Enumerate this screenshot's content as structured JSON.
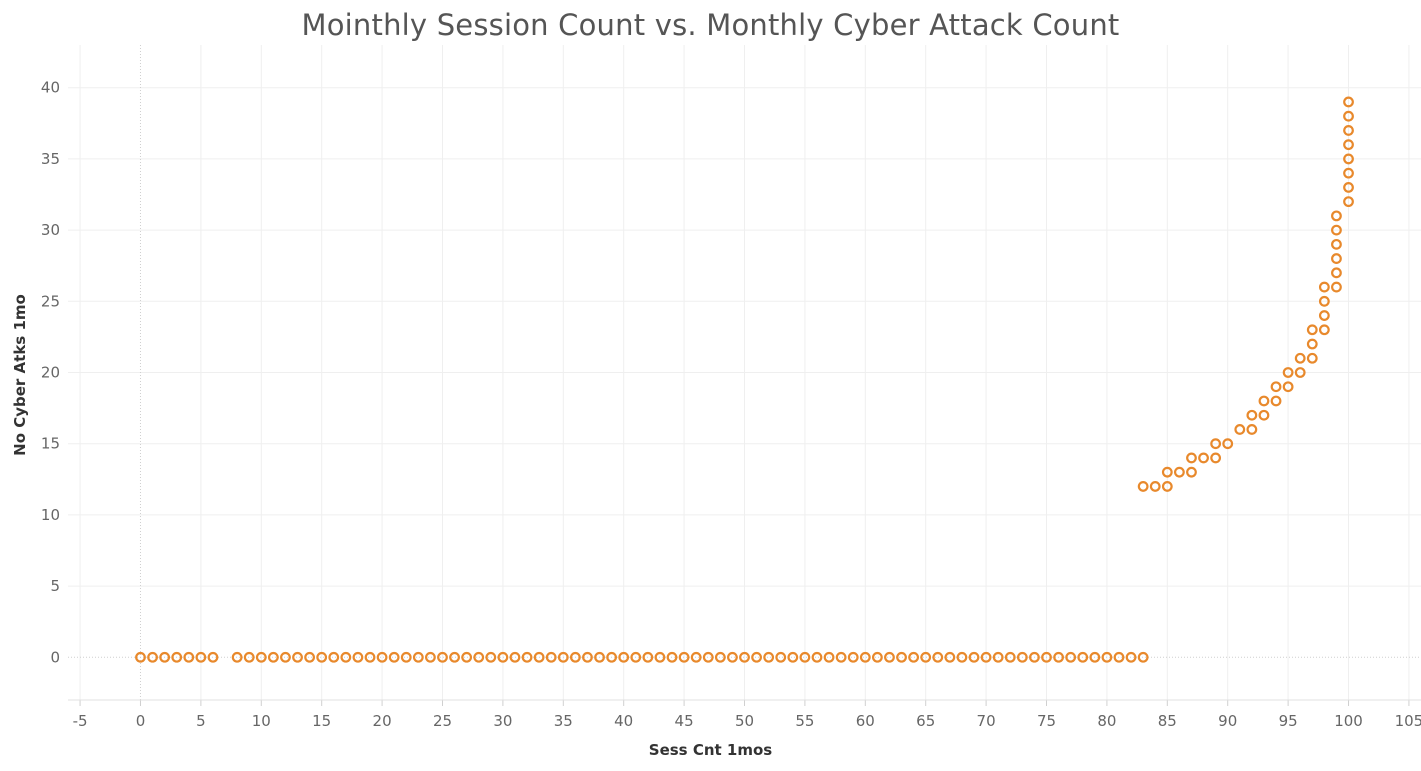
{
  "chart_data": {
    "type": "scatter",
    "title": "Mointhly Session Count vs. Monthly Cyber Attack Count",
    "xlabel": "Sess Cnt 1mos",
    "ylabel": "No Cyber Atks 1mo",
    "xlim": [
      -6,
      106
    ],
    "ylim": [
      -3,
      43
    ],
    "xticks": [
      "-5",
      "0",
      "5",
      "10",
      "15",
      "20",
      "25",
      "30",
      "35",
      "40",
      "45",
      "50",
      "55",
      "60",
      "65",
      "70",
      "75",
      "80",
      "85",
      "90",
      "95",
      "100",
      "105"
    ],
    "yticks": [
      "0",
      "5",
      "10",
      "15",
      "20",
      "25",
      "30",
      "35",
      "40"
    ],
    "grid": true,
    "marker": "open-circle",
    "color": "#E8892C",
    "points": [
      [
        0,
        0
      ],
      [
        1,
        0
      ],
      [
        2,
        0
      ],
      [
        3,
        0
      ],
      [
        4,
        0
      ],
      [
        5,
        0
      ],
      [
        6,
        0
      ],
      [
        8,
        0
      ],
      [
        9,
        0
      ],
      [
        10,
        0
      ],
      [
        11,
        0
      ],
      [
        12,
        0
      ],
      [
        13,
        0
      ],
      [
        14,
        0
      ],
      [
        15,
        0
      ],
      [
        16,
        0
      ],
      [
        17,
        0
      ],
      [
        18,
        0
      ],
      [
        19,
        0
      ],
      [
        20,
        0
      ],
      [
        21,
        0
      ],
      [
        22,
        0
      ],
      [
        23,
        0
      ],
      [
        24,
        0
      ],
      [
        25,
        0
      ],
      [
        26,
        0
      ],
      [
        27,
        0
      ],
      [
        28,
        0
      ],
      [
        29,
        0
      ],
      [
        30,
        0
      ],
      [
        31,
        0
      ],
      [
        32,
        0
      ],
      [
        33,
        0
      ],
      [
        34,
        0
      ],
      [
        35,
        0
      ],
      [
        36,
        0
      ],
      [
        37,
        0
      ],
      [
        38,
        0
      ],
      [
        39,
        0
      ],
      [
        40,
        0
      ],
      [
        41,
        0
      ],
      [
        42,
        0
      ],
      [
        43,
        0
      ],
      [
        44,
        0
      ],
      [
        45,
        0
      ],
      [
        46,
        0
      ],
      [
        47,
        0
      ],
      [
        48,
        0
      ],
      [
        49,
        0
      ],
      [
        50,
        0
      ],
      [
        51,
        0
      ],
      [
        52,
        0
      ],
      [
        53,
        0
      ],
      [
        54,
        0
      ],
      [
        55,
        0
      ],
      [
        56,
        0
      ],
      [
        57,
        0
      ],
      [
        58,
        0
      ],
      [
        59,
        0
      ],
      [
        60,
        0
      ],
      [
        61,
        0
      ],
      [
        62,
        0
      ],
      [
        63,
        0
      ],
      [
        64,
        0
      ],
      [
        65,
        0
      ],
      [
        66,
        0
      ],
      [
        67,
        0
      ],
      [
        68,
        0
      ],
      [
        69,
        0
      ],
      [
        70,
        0
      ],
      [
        71,
        0
      ],
      [
        72,
        0
      ],
      [
        73,
        0
      ],
      [
        74,
        0
      ],
      [
        75,
        0
      ],
      [
        76,
        0
      ],
      [
        77,
        0
      ],
      [
        78,
        0
      ],
      [
        79,
        0
      ],
      [
        80,
        0
      ],
      [
        81,
        0
      ],
      [
        82,
        0
      ],
      [
        83,
        0
      ],
      [
        83,
        12
      ],
      [
        84,
        12
      ],
      [
        85,
        12
      ],
      [
        85,
        13
      ],
      [
        86,
        13
      ],
      [
        87,
        13
      ],
      [
        87,
        14
      ],
      [
        88,
        14
      ],
      [
        89,
        14
      ],
      [
        89,
        15
      ],
      [
        90,
        15
      ],
      [
        91,
        16
      ],
      [
        92,
        16
      ],
      [
        92,
        17
      ],
      [
        93,
        17
      ],
      [
        93,
        18
      ],
      [
        94,
        18
      ],
      [
        94,
        19
      ],
      [
        95,
        19
      ],
      [
        95,
        20
      ],
      [
        96,
        20
      ],
      [
        96,
        21
      ],
      [
        97,
        21
      ],
      [
        97,
        22
      ],
      [
        97,
        23
      ],
      [
        98,
        23
      ],
      [
        98,
        24
      ],
      [
        98,
        25
      ],
      [
        98,
        26
      ],
      [
        99,
        26
      ],
      [
        99,
        27
      ],
      [
        99,
        28
      ],
      [
        99,
        29
      ],
      [
        99,
        30
      ],
      [
        99,
        31
      ],
      [
        100,
        32
      ],
      [
        100,
        33
      ],
      [
        100,
        34
      ],
      [
        100,
        35
      ],
      [
        100,
        36
      ],
      [
        100,
        37
      ],
      [
        100,
        38
      ],
      [
        100,
        39
      ]
    ]
  }
}
